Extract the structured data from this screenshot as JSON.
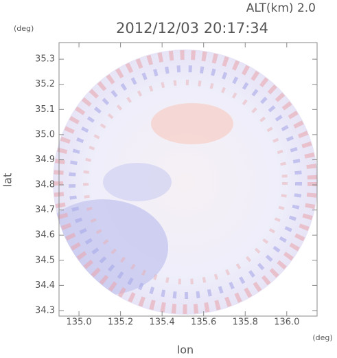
{
  "chart_data": {
    "type": "radar-map",
    "title": "2012/12/03 20:17:34",
    "annotation": "ALT(km) 2.0",
    "y_unit": "(deg)",
    "x_unit": "(deg)",
    "xlabel": "lon",
    "ylabel": "lat",
    "xlim": [
      134.904,
      136.146
    ],
    "ylim": [
      34.278,
      35.366
    ],
    "xticks": [
      {
        "value": 135,
        "label": "135.0"
      },
      135.2,
      135.4,
      135.6,
      135.8,
      {
        "value": 136,
        "label": "136.0"
      }
    ],
    "yticks": [
      34.3,
      34.4,
      34.5,
      34.6,
      34.7,
      34.8,
      34.9,
      {
        "value": 35,
        "label": "35.0"
      },
      35.1,
      35.2,
      35.3
    ]
  }
}
